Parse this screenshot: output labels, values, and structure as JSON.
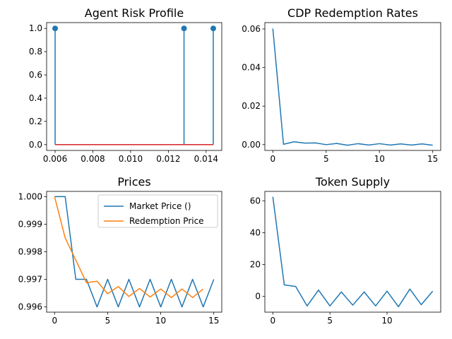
{
  "colors": {
    "blue": "#1f77b4",
    "orange": "#ff7f0e",
    "red": "#d62728"
  },
  "chart_data": [
    {
      "id": "stem",
      "type": "stem",
      "title": "Agent Risk Profile",
      "x": [
        0.006,
        0.01283,
        0.01438
      ],
      "y": [
        1.0,
        1.0,
        1.0
      ],
      "baseline": 0,
      "xlim": [
        0.00555,
        0.01483
      ],
      "ylim": [
        -0.05,
        1.05
      ],
      "xticks": [
        0.006,
        0.008,
        0.01,
        0.012,
        0.014
      ],
      "xtick_labels": [
        "0.006",
        "0.008",
        "0.010",
        "0.012",
        "0.014"
      ],
      "yticks": [
        0.0,
        0.2,
        0.4,
        0.6,
        0.8,
        1.0
      ],
      "ytick_labels": [
        "0.0",
        "0.2",
        "0.4",
        "0.6",
        "0.8",
        "1.0"
      ]
    },
    {
      "id": "cdp",
      "type": "line",
      "title": "CDP Redemption Rates",
      "series": [
        {
          "values_x": [
            0,
            1,
            2,
            3,
            4,
            5,
            6,
            7,
            8,
            9,
            10,
            11,
            12,
            13,
            14,
            15
          ],
          "values_y": [
            0.0602,
            0.0002,
            0.0015,
            0.0008,
            0.0009,
            0.0,
            0.0006,
            -0.0003,
            0.0005,
            -0.0002,
            0.0005,
            -0.0002,
            0.0004,
            -0.0002,
            0.0004,
            -0.0003
          ]
        }
      ],
      "xlim": [
        -0.75,
        15.75
      ],
      "ylim": [
        -0.003,
        0.0633
      ],
      "xticks": [
        0,
        5,
        10,
        15
      ],
      "xtick_labels": [
        "0",
        "5",
        "10",
        "15"
      ],
      "yticks": [
        0.0,
        0.02,
        0.04,
        0.06
      ],
      "ytick_labels": [
        "0.00",
        "0.02",
        "0.04",
        "0.06"
      ]
    },
    {
      "id": "prices",
      "type": "line",
      "title": "Prices",
      "series": [
        {
          "name": "Market Price ()",
          "values_x": [
            0,
            1,
            2,
            3,
            4,
            5,
            6,
            7,
            8,
            9,
            10,
            11,
            12,
            13,
            14,
            15
          ],
          "values_y": [
            1.0,
            1.0,
            0.997,
            0.997,
            0.996,
            0.997,
            0.996,
            0.997,
            0.996,
            0.997,
            0.996,
            0.997,
            0.996,
            0.997,
            0.996,
            0.997
          ]
        },
        {
          "name": "Redemption Price",
          "values_x": [
            0,
            1,
            2,
            3,
            4,
            5,
            6,
            7,
            8,
            9,
            10,
            11,
            12,
            13,
            14
          ],
          "values_y": [
            1.0,
            0.9985,
            0.9977,
            0.99688,
            0.99693,
            0.99648,
            0.99674,
            0.99638,
            0.99667,
            0.99636,
            0.99665,
            0.99634,
            0.99665,
            0.99634,
            0.99665
          ]
        }
      ],
      "xlim": [
        -0.75,
        15.75
      ],
      "ylim": [
        0.99581,
        1.00019
      ],
      "xticks": [
        0,
        5,
        10,
        15
      ],
      "xtick_labels": [
        "0",
        "5",
        "10",
        "15"
      ],
      "yticks": [
        0.996,
        0.997,
        0.998,
        0.999,
        1.0
      ],
      "ytick_labels": [
        "0.996",
        "0.997",
        "0.998",
        "0.999",
        "1.000"
      ],
      "legend": "top-right"
    },
    {
      "id": "supply",
      "type": "line",
      "title": "Token Supply",
      "series": [
        {
          "values_x": [
            0,
            1,
            2,
            3,
            4,
            5,
            6,
            7,
            8,
            9,
            10,
            11,
            12,
            13,
            14
          ],
          "values_y": [
            62.5,
            7.2,
            6.2,
            -6.0,
            4.0,
            -6.0,
            2.8,
            -5.5,
            2.8,
            -6.0,
            3.3,
            -6.5,
            4.6,
            -5.2,
            3.3
          ]
        }
      ],
      "xlim": [
        -0.7,
        14.7
      ],
      "ylim": [
        -9.9,
        65.9
      ],
      "xticks": [
        0,
        5,
        10
      ],
      "xtick_labels": [
        "0",
        "5",
        "10"
      ],
      "yticks": [
        0,
        20,
        40,
        60
      ],
      "ytick_labels": [
        "0",
        "20",
        "40",
        "60"
      ]
    }
  ]
}
